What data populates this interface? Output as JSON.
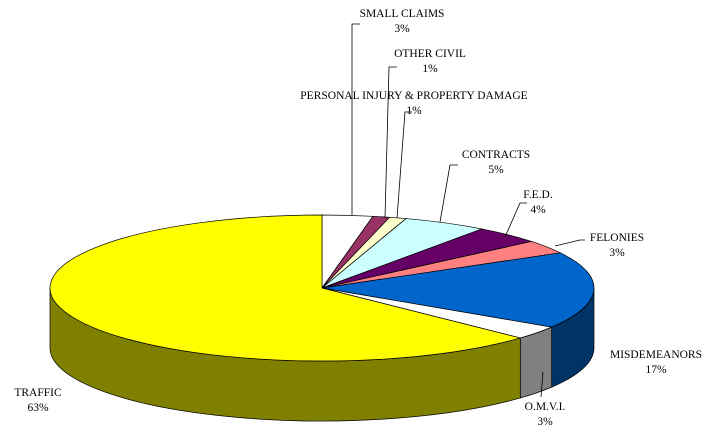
{
  "chart_data": {
    "type": "pie3d",
    "categories": [
      "SMALL CLAIMS",
      "OTHER CIVIL",
      "PERSONAL INJURY & PROPERTY DAMAGE",
      "CONTRACTS",
      "F.E.D.",
      "FELONIES",
      "MISDEMEANORS",
      "O.M.V.I.",
      "TRAFFIC"
    ],
    "values": [
      3,
      1,
      1,
      5,
      4,
      3,
      17,
      3,
      63
    ],
    "value_labels": [
      "3%",
      "1%",
      "1%",
      "5%",
      "4%",
      "3%",
      "17%",
      "3%",
      "63%"
    ],
    "colors": [
      "#ffffff",
      "#993366",
      "#ffffcc",
      "#ccffff",
      "#660066",
      "#ff8080",
      "#0066cc",
      "#ffffff",
      "#ffff00"
    ]
  }
}
